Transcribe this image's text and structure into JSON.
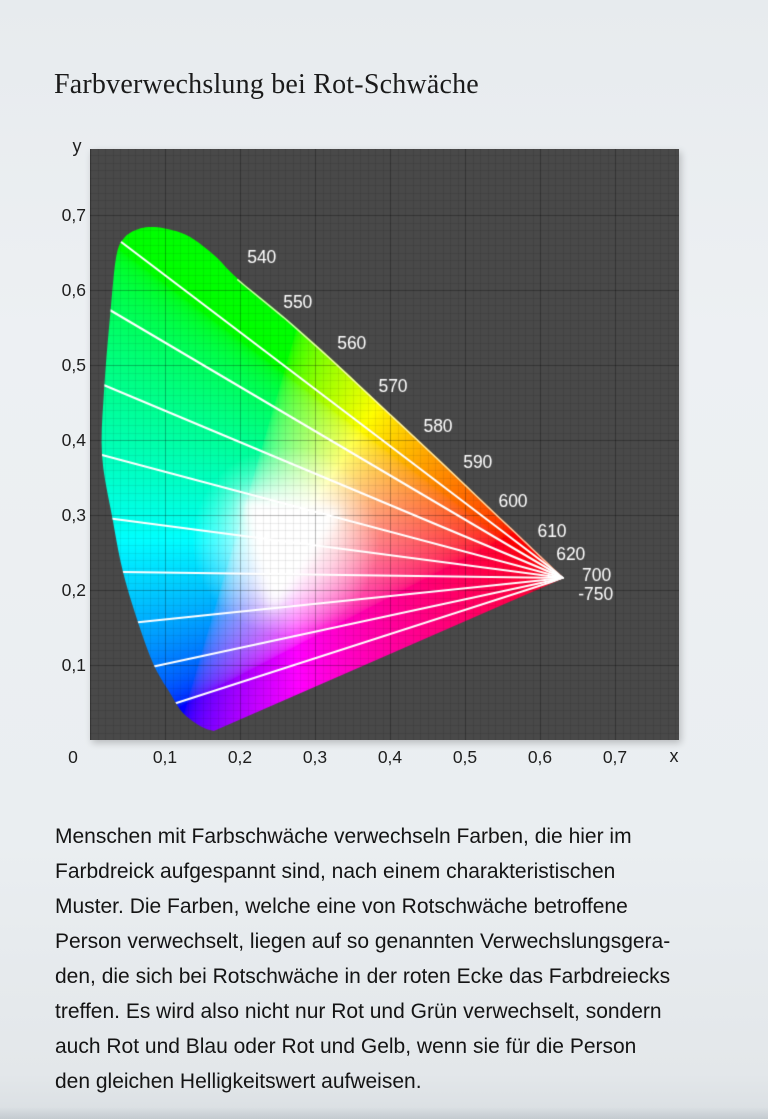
{
  "page": {
    "title": "Farbverwechslung bei Rot-Schwäche"
  },
  "chart_data": {
    "type": "area",
    "title": "Farbverwechslung bei Rot-Schwäche",
    "xlabel": "x",
    "ylabel": "y",
    "xlim": [
      0,
      0.785
    ],
    "ylim": [
      0,
      0.788
    ],
    "grid": {
      "minor_step": 0.01,
      "major_step": 0.1,
      "background": "#494949",
      "minor_color": "rgba(0,0,0,0.07)",
      "major_color": "rgba(0,0,0,0.22)"
    },
    "x_ticks": [
      {
        "label": "0",
        "value": 0
      },
      {
        "label": "0,1",
        "value": 0.1
      },
      {
        "label": "0,2",
        "value": 0.2
      },
      {
        "label": "0,3",
        "value": 0.3
      },
      {
        "label": "0,4",
        "value": 0.4
      },
      {
        "label": "0,5",
        "value": 0.5
      },
      {
        "label": "0,6",
        "value": 0.6
      },
      {
        "label": "0,7",
        "value": 0.7
      }
    ],
    "y_ticks": [
      {
        "label": "0,7",
        "value": 0.7
      },
      {
        "label": "0,6",
        "value": 0.6
      },
      {
        "label": "0,5",
        "value": 0.5
      },
      {
        "label": "0,4",
        "value": 0.4
      },
      {
        "label": "0,3",
        "value": 0.3
      },
      {
        "label": "0,2",
        "value": 0.2
      },
      {
        "label": "0,1",
        "value": 0.1
      }
    ],
    "locus": [
      [
        0.165,
        0.012
      ],
      [
        0.148,
        0.018
      ],
      [
        0.124,
        0.036
      ],
      [
        0.107,
        0.062
      ],
      [
        0.085,
        0.1
      ],
      [
        0.064,
        0.157
      ],
      [
        0.044,
        0.224
      ],
      [
        0.03,
        0.295
      ],
      [
        0.016,
        0.38
      ],
      [
        0.019,
        0.47
      ],
      [
        0.027,
        0.568
      ],
      [
        0.035,
        0.645
      ],
      [
        0.046,
        0.67
      ],
      [
        0.064,
        0.681
      ],
      [
        0.082,
        0.684
      ],
      [
        0.105,
        0.681
      ],
      [
        0.133,
        0.671
      ],
      [
        0.166,
        0.646
      ],
      [
        0.197,
        0.615
      ],
      [
        0.259,
        0.564
      ],
      [
        0.321,
        0.509
      ],
      [
        0.382,
        0.452
      ],
      [
        0.441,
        0.397
      ],
      [
        0.495,
        0.346
      ],
      [
        0.539,
        0.304
      ],
      [
        0.573,
        0.272
      ],
      [
        0.595,
        0.251
      ],
      [
        0.618,
        0.229
      ],
      [
        0.632,
        0.216
      ]
    ],
    "bright_edge_start_index": 18,
    "convergence_point": [
      0.632,
      0.216
    ],
    "confusion_lines": [
      [
        0.035,
        0.669
      ],
      [
        0.027,
        0.573
      ],
      [
        0.019,
        0.473
      ],
      [
        0.016,
        0.38
      ],
      [
        0.03,
        0.295
      ],
      [
        0.044,
        0.224
      ],
      [
        0.064,
        0.157
      ],
      [
        0.085,
        0.098
      ],
      [
        0.108,
        0.047
      ]
    ],
    "line_color": "#ffffff",
    "wavelength_labels": [
      {
        "text": "540",
        "x": 0.229,
        "y": 0.643,
        "anchor": "center"
      },
      {
        "text": "550",
        "x": 0.277,
        "y": 0.583,
        "anchor": "center"
      },
      {
        "text": "560",
        "x": 0.349,
        "y": 0.528,
        "anchor": "center"
      },
      {
        "text": "570",
        "x": 0.404,
        "y": 0.471,
        "anchor": "center"
      },
      {
        "text": "580",
        "x": 0.464,
        "y": 0.417,
        "anchor": "center"
      },
      {
        "text": "590",
        "x": 0.517,
        "y": 0.369,
        "anchor": "center"
      },
      {
        "text": "600",
        "x": 0.564,
        "y": 0.317,
        "anchor": "center"
      },
      {
        "text": "610",
        "x": 0.616,
        "y": 0.277,
        "anchor": "center"
      },
      {
        "text": "620",
        "x": 0.641,
        "y": 0.247,
        "anchor": "center"
      },
      {
        "text": "700",
        "x": 0.656,
        "y": 0.219,
        "anchor": "left"
      },
      {
        "text": "-750",
        "x": 0.651,
        "y": 0.193,
        "anchor": "left"
      }
    ],
    "white_region": {
      "triangle": [
        [
          0.204,
          0.322
        ],
        [
          0.335,
          0.305
        ],
        [
          0.243,
          0.17
        ]
      ],
      "center": [
        0.261,
        0.266
      ],
      "radius": 0.125
    }
  },
  "body_text": {
    "lines": [
      "Menschen mit Farbschwäche verwechseln Farben, die hier im",
      "Farbdreick aufgespannt sind, nach einem charakteristischen",
      "Muster. Die Farben, welche eine von Rotschwäche betroffene",
      "Person verwechselt, liegen auf so genannten Verwechslungsgera-",
      "den, die sich bei Rotschwäche in der roten Ecke das Farbdreiecks",
      "treffen. Es wird also nicht nur Rot und Grün verwechselt, sondern",
      "auch Rot und Blau oder Rot und Gelb, wenn sie für die Person",
      "den gleichen Helligkeitswert aufweisen."
    ]
  }
}
